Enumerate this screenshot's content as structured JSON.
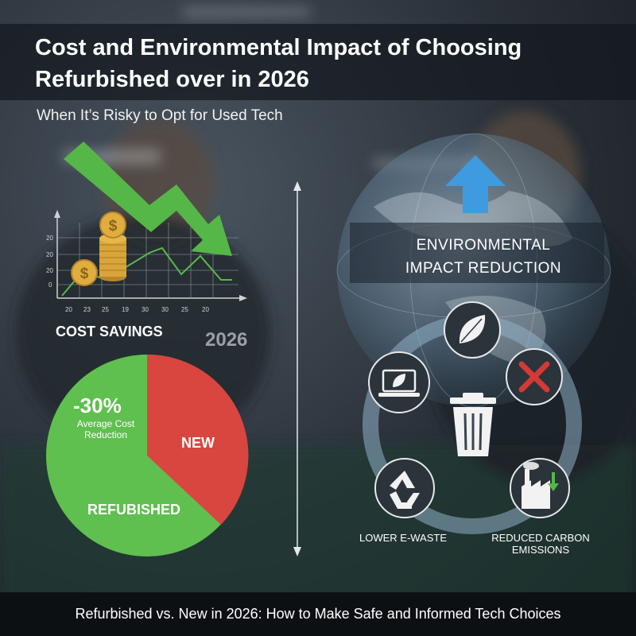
{
  "header": {
    "title": "Cost and Environmental Impact of Choosing Refurbished over in 2026",
    "subtitle": "When It’s Risky to Opt for Used Tech"
  },
  "cost_panel": {
    "label": "COST SAVINGS",
    "year": "2026",
    "y_ticks": [
      "20",
      "20",
      "20",
      "0"
    ],
    "x_ticks": [
      "20",
      "23",
      "25",
      "19",
      "30",
      "30",
      "25",
      "20"
    ]
  },
  "pie": {
    "percent": "-30%",
    "note": "Average Cost Reduction",
    "new_label": "NEW",
    "refurbished_label": "REFUBISHED"
  },
  "environment_panel": {
    "title": "ENVIRONMENTAL IMPACT REDUCTION",
    "lower_ewaste": "LOWER E-WASTE",
    "reduced_carbon": "REDUCED CARBON EMISSIONS"
  },
  "footer": {
    "text": "Refurbished vs. New in 2026: How to Make Safe and Informed Tech Choices"
  },
  "colors": {
    "refurbished_green": "#5fbf4f",
    "new_red": "#d9453f",
    "trend_green": "#55b747",
    "up_arrow_blue": "#3f9be0",
    "x_mark_red": "#d33a35"
  },
  "icons": [
    "dollar-coin-icon",
    "down-trend-arrow-icon",
    "up-arrow-icon",
    "globe-icon",
    "leaf-icon",
    "x-mark-icon",
    "laptop-leaf-icon",
    "trash-can-icon",
    "recycle-icon",
    "factory-icon"
  ]
}
